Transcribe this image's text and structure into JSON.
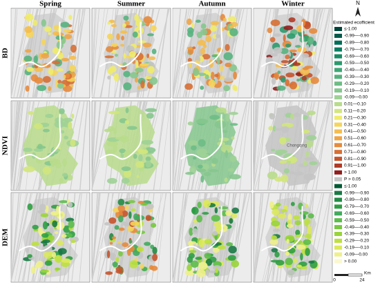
{
  "columns": [
    "Spring",
    "Summer",
    "Autumn",
    "Winter"
  ],
  "rows": [
    "BD",
    "NDVI",
    "DEM"
  ],
  "map_label": "Chongqing",
  "north": "N",
  "legend": {
    "title": "Estimated ecofficient",
    "groups": [
      [
        {
          "label": "≤-1.00",
          "color": "#00443a"
        },
        {
          "label": "-0.99—-0.90",
          "color": "#00594a"
        },
        {
          "label": "-0.89—-0.80",
          "color": "#006d57"
        },
        {
          "label": "-0.79—-0.70",
          "color": "#0a7d60"
        },
        {
          "label": "-0.69—-0.60",
          "color": "#1a8c66"
        },
        {
          "label": "-0.59—-0.50",
          "color": "#2b9a6d"
        },
        {
          "label": "-0.49—-0.40",
          "color": "#3fa676"
        },
        {
          "label": "-0.39—-0.30",
          "color": "#56b27e"
        },
        {
          "label": "-0.29—-0.20",
          "color": "#6ebd86"
        },
        {
          "label": "-0.19—-0.10",
          "color": "#86c78e"
        },
        {
          "label": "-0.09—0.00",
          "color": "#9fd196"
        },
        {
          "label": "0.01—0.10",
          "color": "#b9dc8c"
        },
        {
          "label": "0.11—0.20",
          "color": "#d2e67c"
        },
        {
          "label": "0.21—0.30",
          "color": "#f0ec6a"
        },
        {
          "label": "0.31—0.40",
          "color": "#f5d55a"
        },
        {
          "label": "0.41—0.50",
          "color": "#f4bd4e"
        },
        {
          "label": "0.51—0.60",
          "color": "#efa444"
        },
        {
          "label": "0.61—0.70",
          "color": "#e58a3c"
        },
        {
          "label": "0.71—0.80",
          "color": "#d76f34"
        },
        {
          "label": "0.81—0.90",
          "color": "#c5542c"
        },
        {
          "label": "0.91—1.00",
          "color": "#b03a26"
        },
        {
          "label": "> 1.00",
          "color": "#921e1e"
        },
        {
          "label": "P > 0.05",
          "color": "#c4c4c4"
        }
      ],
      [
        {
          "label": "≤-1.00",
          "color": "#005a32"
        },
        {
          "label": "-0.99—-0.90",
          "color": "#1a7a45"
        },
        {
          "label": "-0.89—-0.80",
          "color": "#238b45"
        },
        {
          "label": "-0.79—-0.70",
          "color": "#2f9e44"
        },
        {
          "label": "-0.69—-0.60",
          "color": "#41ab5d"
        },
        {
          "label": "-0.59—-0.50",
          "color": "#5cbd4a"
        },
        {
          "label": "-0.49—-0.40",
          "color": "#78c840"
        },
        {
          "label": "-0.39—-0.30",
          "color": "#9ad43a"
        },
        {
          "label": "-0.29—-0.20",
          "color": "#bde040"
        },
        {
          "label": "-0.19—-0.10",
          "color": "#dbe95a"
        },
        {
          "label": "-0.09—0.00",
          "color": "#eef18a"
        },
        {
          "label": "> 0.00",
          "color": "#fbf8cf"
        }
      ]
    ]
  },
  "scale": {
    "unit": "Km",
    "labels": [
      "0",
      "24"
    ]
  }
}
